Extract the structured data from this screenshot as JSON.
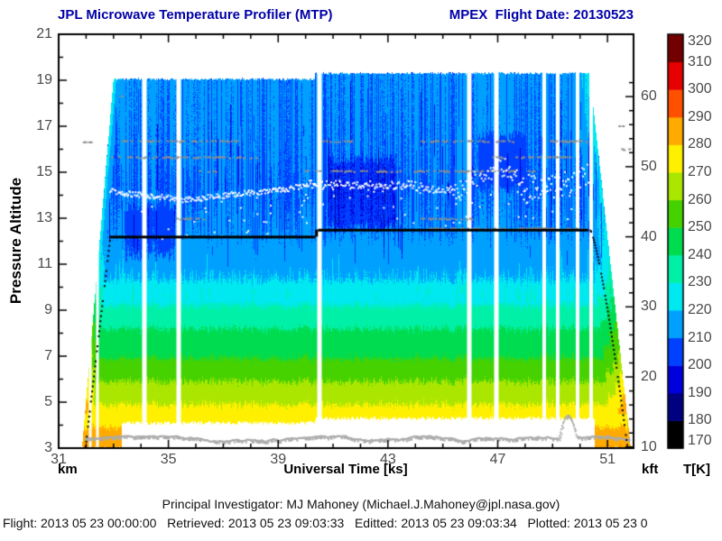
{
  "footer": {
    "pi_line": "Principal Investigator: MJ Mahoney (Michael.J.Mahoney@jpl.nasa.gov)",
    "status_line": "Flight: 2013 05 23 00:00:00   Retrieved: 2013 05 23 09:03:33   Editted: 2013 05 23 09:03:34   Plotted: 2013 05 23 0"
  },
  "chart_data": {
    "type": "heatmap",
    "title": "JPL Microwave Temperature Profiler (MTP)",
    "subtitle_right": "MPEX  Flight Date: 20130523",
    "xlabel": "Universal Time [ks]",
    "ylabel": "Pressure Altitude",
    "y_unit_left": "km",
    "y_unit_right": "kft",
    "xlim": [
      31,
      51.95
    ],
    "xticks": [
      31,
      35,
      39,
      43,
      47,
      51
    ],
    "x_minor_step_ks": 1,
    "ylim": [
      3,
      21
    ],
    "yticks": [
      3,
      5,
      7,
      9,
      11,
      13,
      15,
      17,
      19,
      21
    ],
    "y_minor_step_km": 1,
    "y2_ticks_kft": [
      10,
      20,
      30,
      40,
      50,
      60
    ],
    "y2_minor_step_kft": 2,
    "km_per_kft": 0.3048,
    "grid": false,
    "colorbar": {
      "unit": "T[K]",
      "min": 170,
      "max": 320,
      "ticks": [
        170,
        180,
        190,
        200,
        210,
        220,
        230,
        240,
        250,
        260,
        270,
        280,
        290,
        300,
        310,
        320
      ],
      "band_colors_low_to_high": [
        "#000000",
        "#000080",
        "#0000dc",
        "#0041ff",
        "#00a0ff",
        "#00e8f0",
        "#00f0a8",
        "#00dc50",
        "#46d200",
        "#aae600",
        "#fff000",
        "#ffaa00",
        "#ff5000",
        "#e60000",
        "#730000"
      ]
    },
    "temperature_profile_K": [
      [
        3.0,
        289
      ],
      [
        4.1,
        278
      ],
      [
        5.0,
        269
      ],
      [
        6.0,
        259
      ],
      [
        7.0,
        249
      ],
      [
        8.1,
        241
      ],
      [
        9.1,
        231
      ],
      [
        10.2,
        221
      ],
      [
        11.2,
        214.5
      ],
      [
        12.4,
        211.5
      ],
      [
        13.5,
        210.5
      ],
      [
        14.4,
        209.8
      ],
      [
        15.3,
        210.5
      ],
      [
        17.0,
        211.0
      ],
      [
        19.5,
        211.5
      ]
    ],
    "flight_window": {
      "takeoff_ks": 31.85,
      "top_of_climb_ks": 33.0,
      "ceiling_step_ks": 40.35,
      "descent_start_ks": 50.35,
      "landing_ks": 51.85,
      "ceiling1_km": 19.05,
      "ceiling2_km": 19.3,
      "floor_start_ks": 33.3,
      "floor_end_ks": 50.55,
      "floor1_km": 4.1,
      "floor2_km": 4.3,
      "ground_km": 3.0
    },
    "flight_track_km": {
      "ascent": [
        [
          31.95,
          3.1
        ],
        [
          32.85,
          12.2
        ]
      ],
      "level1": [
        [
          32.85,
          12.2
        ],
        [
          40.35,
          12.2
        ]
      ],
      "level2": [
        [
          40.45,
          12.5
        ],
        [
          50.3,
          12.5
        ]
      ],
      "descent": [
        [
          50.35,
          12.5
        ],
        [
          51.7,
          3.05
        ]
      ]
    },
    "tropopause_trace_km": [
      [
        32.85,
        14.25
      ],
      [
        33.5,
        14.1
      ],
      [
        34.5,
        14.0
      ],
      [
        35.5,
        13.85
      ],
      [
        36.5,
        13.95
      ],
      [
        37.5,
        14.1
      ],
      [
        38.5,
        14.2
      ],
      [
        39.5,
        14.35
      ],
      [
        40.2,
        14.55
      ],
      [
        41.0,
        14.5
      ],
      [
        42.0,
        14.45
      ],
      [
        43.0,
        14.4
      ],
      [
        44.0,
        14.45
      ],
      [
        44.8,
        14.25
      ],
      [
        45.3,
        14.3
      ],
      [
        45.8,
        14.25
      ],
      [
        46.3,
        14.7
      ],
      [
        46.8,
        15.1
      ],
      [
        47.2,
        15.35
      ],
      [
        47.6,
        14.8
      ],
      [
        48.0,
        14.45
      ],
      [
        48.6,
        14.35
      ],
      [
        49.2,
        14.45
      ],
      [
        49.8,
        14.6
      ],
      [
        50.3,
        15.0
      ]
    ],
    "surface_trace_km": {
      "base_km": 3.44,
      "t_range_ks": [
        31.95,
        51.8
      ],
      "bump_ks": [
        49.2,
        49.85
      ],
      "bump_peak_km": 4.35
    },
    "data_gaps_ks": [
      [
        32.15,
        3
      ],
      [
        32.42,
        3
      ],
      [
        34.12,
        5
      ],
      [
        35.38,
        5
      ],
      [
        40.52,
        5
      ],
      [
        45.98,
        5
      ],
      [
        46.95,
        5
      ],
      [
        48.68,
        4
      ],
      [
        49.18,
        4
      ],
      [
        49.9,
        4
      ],
      [
        50.42,
        4
      ]
    ],
    "cold_patches": [
      [
        40.8,
        43.3,
        12.6,
        15.6,
        -9
      ],
      [
        46.3,
        48.0,
        14.3,
        16.6,
        -6
      ],
      [
        33.4,
        35.2,
        11.3,
        13.5,
        -5
      ]
    ],
    "gray_flag_rows": [
      {
        "alt_km": 16.35,
        "segments_ks": [
          [
            33.3,
            37.6
          ],
          [
            40.6,
            41.9
          ],
          [
            44.2,
            47.7
          ],
          [
            48.9,
            50.2
          ]
        ]
      },
      {
        "alt_km": 15.65,
        "segments_ks": [
          [
            32.9,
            38.3
          ],
          [
            46.8,
            49.6
          ]
        ]
      },
      {
        "alt_km": 15.05,
        "segments_ks": [
          [
            36.1,
            36.7
          ],
          [
            39.9,
            48.3
          ]
        ]
      },
      {
        "alt_km": 12.98,
        "segments_ks": [
          [
            35.2,
            36.3
          ],
          [
            44.2,
            46.1
          ]
        ]
      },
      {
        "alt_km": 12.55,
        "segments_ks": [
          [
            44.5,
            50.15
          ]
        ]
      },
      {
        "alt_km": 18.3,
        "segments_ks": [
          [
            33.0,
            33.3
          ]
        ]
      },
      {
        "alt_km": 16.3,
        "segments_ks": [
          [
            31.88,
            32.2
          ]
        ]
      },
      {
        "alt_km": 17.0,
        "segments_ks": [
          [
            51.4,
            51.72
          ]
        ]
      },
      {
        "alt_km": 16.0,
        "segments_ks": [
          [
            51.5,
            51.78
          ]
        ]
      }
    ]
  }
}
